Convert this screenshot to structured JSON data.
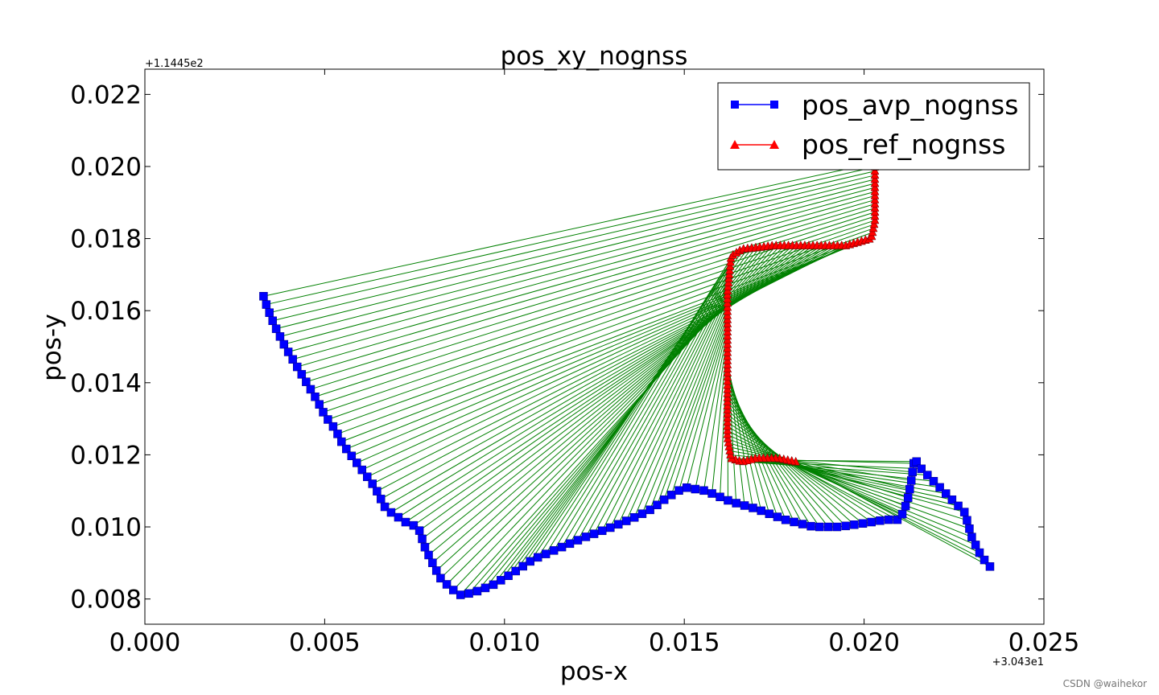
{
  "chart_data": {
    "type": "line",
    "title": "pos_xy_nognss",
    "xlabel": "pos-x",
    "ylabel": "pos-y",
    "x_offset_label": "+3.043e1",
    "y_offset_label": "+1.1445e2",
    "xlim": [
      0.0,
      0.025
    ],
    "ylim": [
      0.0073,
      0.0227
    ],
    "x_ticks": [
      0.0,
      0.005,
      0.01,
      0.015,
      0.02,
      0.025
    ],
    "x_tick_labels": [
      "0.000",
      "0.005",
      "0.010",
      "0.015",
      "0.020",
      "0.025"
    ],
    "y_ticks": [
      0.008,
      0.01,
      0.012,
      0.014,
      0.016,
      0.018,
      0.02,
      0.022
    ],
    "y_tick_labels": [
      "0.008",
      "0.010",
      "0.012",
      "0.014",
      "0.016",
      "0.018",
      "0.020",
      "0.022"
    ],
    "grid": false,
    "legend_position": "top-right",
    "series": [
      {
        "name": "pos_avp_nognss",
        "color": "#0000ff",
        "marker": "square",
        "points": [
          [
            0.0033,
            0.0164
          ],
          [
            0.0034,
            0.0161
          ],
          [
            0.0036,
            0.0156
          ],
          [
            0.0039,
            0.015
          ],
          [
            0.0042,
            0.0145
          ],
          [
            0.0045,
            0.014
          ],
          [
            0.0048,
            0.0135
          ],
          [
            0.005,
            0.0131
          ],
          [
            0.0053,
            0.0127
          ],
          [
            0.0055,
            0.0123
          ],
          [
            0.0058,
            0.0119
          ],
          [
            0.0061,
            0.0115
          ],
          [
            0.0064,
            0.0111
          ],
          [
            0.0067,
            0.0105
          ],
          [
            0.007,
            0.0103
          ],
          [
            0.0073,
            0.0101
          ],
          [
            0.0076,
            0.01
          ],
          [
            0.0078,
            0.0094
          ],
          [
            0.008,
            0.009
          ],
          [
            0.0082,
            0.0086
          ],
          [
            0.0085,
            0.0083
          ],
          [
            0.0088,
            0.0081
          ],
          [
            0.0092,
            0.0082
          ],
          [
            0.0097,
            0.0084
          ],
          [
            0.0102,
            0.0087
          ],
          [
            0.0108,
            0.0091
          ],
          [
            0.0115,
            0.0094
          ],
          [
            0.0122,
            0.0097
          ],
          [
            0.013,
            0.01
          ],
          [
            0.0137,
            0.0103
          ],
          [
            0.0141,
            0.0105
          ],
          [
            0.0145,
            0.0108
          ],
          [
            0.015,
            0.0111
          ],
          [
            0.0156,
            0.011
          ],
          [
            0.0163,
            0.0107
          ],
          [
            0.017,
            0.0105
          ],
          [
            0.0178,
            0.0102
          ],
          [
            0.0186,
            0.01
          ],
          [
            0.0193,
            0.01
          ],
          [
            0.02,
            0.0101
          ],
          [
            0.0206,
            0.0102
          ],
          [
            0.021,
            0.0102
          ],
          [
            0.0212,
            0.0107
          ],
          [
            0.0213,
            0.0112
          ],
          [
            0.0214,
            0.0119
          ],
          [
            0.0216,
            0.0116
          ],
          [
            0.0228,
            0.0104
          ],
          [
            0.023,
            0.0097
          ],
          [
            0.0232,
            0.0093
          ],
          [
            0.0234,
            0.009
          ],
          [
            0.0235,
            0.0089
          ]
        ]
      },
      {
        "name": "pos_ref_nognss",
        "color": "#ff0000",
        "marker": "triangle",
        "points": [
          [
            0.0181,
            0.0118
          ],
          [
            0.0176,
            0.0119
          ],
          [
            0.017,
            0.0119
          ],
          [
            0.0166,
            0.0118
          ],
          [
            0.0163,
            0.0119
          ],
          [
            0.0162,
            0.0125
          ],
          [
            0.0162,
            0.0135
          ],
          [
            0.0162,
            0.0145
          ],
          [
            0.0162,
            0.0155
          ],
          [
            0.0162,
            0.0165
          ],
          [
            0.0163,
            0.0175
          ],
          [
            0.0166,
            0.0177
          ],
          [
            0.0175,
            0.0178
          ],
          [
            0.0185,
            0.0178
          ],
          [
            0.0195,
            0.0178
          ],
          [
            0.0202,
            0.018
          ],
          [
            0.0203,
            0.0185
          ],
          [
            0.0203,
            0.0192
          ],
          [
            0.0203,
            0.0198
          ],
          [
            0.0203,
            0.0201
          ]
        ]
      }
    ]
  },
  "watermark": "CSDN @waihekor"
}
